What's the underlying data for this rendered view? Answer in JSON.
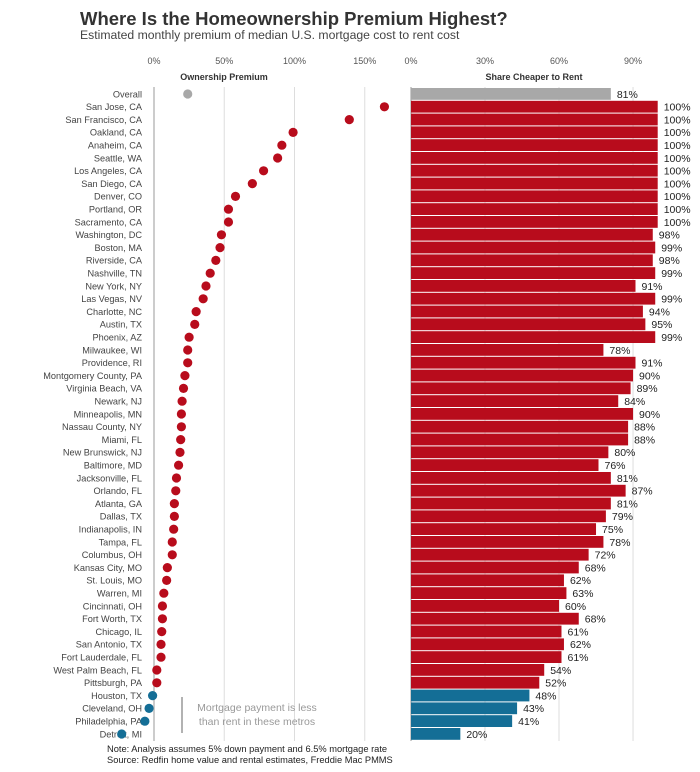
{
  "title": "Where Is the Homeownership Premium Highest?",
  "subtitle": "Estimated monthly premium of median U.S. mortgage cost to rent cost",
  "footer": {
    "note": "Note: Analysis assumes 5% down payment and 6.5% mortgage rate",
    "source": "Source: Redfin home value and rental estimates, Freddie Mac PMMS"
  },
  "colors": {
    "positive": "#B80C1C",
    "negative": "#146E96",
    "overall": "#A8A8A8",
    "grid": "#DDDDDD",
    "axis": "#BBBBBB"
  },
  "annotation": {
    "line1": "Mortgage payment is less",
    "line2": "than rent in these metros"
  },
  "chart_data": [
    {
      "type": "scatter",
      "title": "Ownership Premium",
      "xlabel": "Ownership Premium",
      "xlim": [
        -25,
        165
      ],
      "xticks": [
        0,
        50,
        100,
        150
      ],
      "xtick_labels": [
        "0%",
        "50%",
        "100%",
        "150%"
      ],
      "grid": true,
      "categories": [
        "Overall",
        "San Jose, CA",
        "San Francisco, CA",
        "Oakland, CA",
        "Anaheim, CA",
        "Seattle, WA",
        "Los Angeles, CA",
        "San Diego, CA",
        "Denver, CO",
        "Portland, OR",
        "Sacramento, CA",
        "Washington, DC",
        "Boston, MA",
        "Riverside, CA",
        "Nashville, TN",
        "New York, NY",
        "Las Vegas, NV",
        "Charlotte, NC",
        "Austin, TX",
        "Phoenix, AZ",
        "Milwaukee, WI",
        "Providence, RI",
        "Montgomery County, PA",
        "Virginia Beach, VA",
        "Newark, NJ",
        "Minneapolis, MN",
        "Nassau County, NY",
        "Miami, FL",
        "New Brunswick, NJ",
        "Baltimore, MD",
        "Jacksonville, FL",
        "Orlando, FL",
        "Atlanta, GA",
        "Dallas, TX",
        "Indianapolis, IN",
        "Tampa, FL",
        "Columbus, OH",
        "Kansas City, MO",
        "St. Louis, MO",
        "Warren, MI",
        "Cincinnati, OH",
        "Fort Worth, TX",
        "Chicago, IL",
        "San Antonio, TX",
        "Fort Lauderdale, FL",
        "West Palm Beach, FL",
        "Pittsburgh, PA",
        "Houston, TX",
        "Cleveland, OH",
        "Philadelphia, PA",
        "Detroit, MI"
      ],
      "values": [
        24,
        164,
        139,
        99,
        91,
        88,
        78,
        70,
        58,
        53,
        53,
        48,
        47,
        44,
        40,
        37,
        35,
        30,
        29,
        25,
        24,
        24,
        22,
        21,
        20,
        19.5,
        19.5,
        19,
        18.5,
        17.5,
        16,
        15.5,
        14.5,
        14.5,
        14,
        13,
        13,
        9.5,
        9,
        7,
        6,
        6,
        5.5,
        5,
        5,
        2,
        2,
        -1,
        -3.5,
        -6.5,
        -23
      ]
    },
    {
      "type": "bar",
      "orientation": "horizontal",
      "title": "Share Cheaper to Rent",
      "xlabel": "Share Cheaper to Rent",
      "xlim": [
        0,
        100
      ],
      "xticks": [
        0,
        30,
        60,
        90
      ],
      "xtick_labels": [
        "0%",
        "30%",
        "60%",
        "90%"
      ],
      "grid": true,
      "categories": [
        "Overall",
        "San Jose, CA",
        "San Francisco, CA",
        "Oakland, CA",
        "Anaheim, CA",
        "Seattle, WA",
        "Los Angeles, CA",
        "San Diego, CA",
        "Denver, CO",
        "Portland, OR",
        "Sacramento, CA",
        "Washington, DC",
        "Boston, MA",
        "Riverside, CA",
        "Nashville, TN",
        "New York, NY",
        "Las Vegas, NV",
        "Charlotte, NC",
        "Austin, TX",
        "Phoenix, AZ",
        "Milwaukee, WI",
        "Providence, RI",
        "Montgomery County, PA",
        "Virginia Beach, VA",
        "Newark, NJ",
        "Minneapolis, MN",
        "Nassau County, NY",
        "Miami, FL",
        "New Brunswick, NJ",
        "Baltimore, MD",
        "Jacksonville, FL",
        "Orlando, FL",
        "Atlanta, GA",
        "Dallas, TX",
        "Indianapolis, IN",
        "Tampa, FL",
        "Columbus, OH",
        "Kansas City, MO",
        "St. Louis, MO",
        "Warren, MI",
        "Cincinnati, OH",
        "Fort Worth, TX",
        "Chicago, IL",
        "San Antonio, TX",
        "Fort Lauderdale, FL",
        "West Palm Beach, FL",
        "Pittsburgh, PA",
        "Houston, TX",
        "Cleveland, OH",
        "Philadelphia, PA",
        "Detroit, MI"
      ],
      "values": [
        81,
        100,
        100,
        100,
        100,
        100,
        100,
        100,
        100,
        100,
        100,
        98,
        99,
        98,
        99,
        91,
        99,
        94,
        95,
        99,
        78,
        91,
        90,
        89,
        84,
        90,
        88,
        88,
        80,
        76,
        81,
        87,
        81,
        79,
        75,
        78,
        72,
        68,
        62,
        63,
        60,
        68,
        61,
        62,
        61,
        54,
        52,
        48,
        43,
        41,
        20
      ],
      "data_labels": [
        "81%",
        "100%",
        "100%",
        "100%",
        "100%",
        "100%",
        "100%",
        "100%",
        "100%",
        "100%",
        "100%",
        "98%",
        "99%",
        "98%",
        "99%",
        "91%",
        "99%",
        "94%",
        "95%",
        "99%",
        "78%",
        "91%",
        "90%",
        "89%",
        "84%",
        "90%",
        "88%",
        "88%",
        "80%",
        "76%",
        "81%",
        "87%",
        "81%",
        "79%",
        "75%",
        "78%",
        "72%",
        "68%",
        "62%",
        "63%",
        "60%",
        "68%",
        "61%",
        "62%",
        "61%",
        "54%",
        "52%",
        "48%",
        "43%",
        "41%",
        "20%"
      ]
    }
  ]
}
